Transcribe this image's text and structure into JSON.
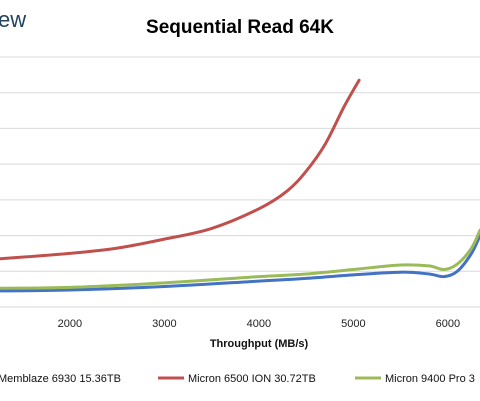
{
  "brand_fragment": "ew",
  "chart_data": {
    "type": "line",
    "title": "Sequential Read 64K",
    "xlabel": "Throughput (MB/s)",
    "ylabel": "",
    "xlim": [
      1260,
      6340
    ],
    "ylim": [
      0,
      14
    ],
    "x_ticks": [
      2000,
      3000,
      4000,
      5000,
      6000
    ],
    "grid": "horizontal",
    "legend_position": "bottom",
    "series": [
      {
        "name": "Memblaze 6930 15.36TB",
        "color": "#4472c4",
        "points": [
          [
            1260,
            0.9
          ],
          [
            2000,
            0.95
          ],
          [
            3000,
            1.15
          ],
          [
            4000,
            1.45
          ],
          [
            4500,
            1.6
          ],
          [
            5000,
            1.8
          ],
          [
            5500,
            1.95
          ],
          [
            5800,
            1.85
          ],
          [
            5960,
            1.7
          ],
          [
            6100,
            2.0
          ],
          [
            6250,
            3.0
          ],
          [
            6340,
            4.0
          ]
        ]
      },
      {
        "name": "Micron 6500 ION 30.72TB",
        "color": "#c0504d",
        "points": [
          [
            1260,
            2.7
          ],
          [
            2000,
            3.0
          ],
          [
            2500,
            3.3
          ],
          [
            3000,
            3.8
          ],
          [
            3500,
            4.4
          ],
          [
            4000,
            5.5
          ],
          [
            4300,
            6.5
          ],
          [
            4500,
            7.6
          ],
          [
            4700,
            9.1
          ],
          [
            4900,
            11.2
          ],
          [
            5060,
            12.7
          ]
        ]
      },
      {
        "name": "Micron 9400 Pro 3",
        "color": "#9bbb59",
        "points": [
          [
            1260,
            1.05
          ],
          [
            2000,
            1.1
          ],
          [
            3000,
            1.35
          ],
          [
            4000,
            1.7
          ],
          [
            4500,
            1.85
          ],
          [
            5000,
            2.1
          ],
          [
            5500,
            2.35
          ],
          [
            5800,
            2.3
          ],
          [
            5960,
            2.1
          ],
          [
            6100,
            2.4
          ],
          [
            6250,
            3.3
          ],
          [
            6340,
            4.3
          ]
        ]
      }
    ]
  }
}
